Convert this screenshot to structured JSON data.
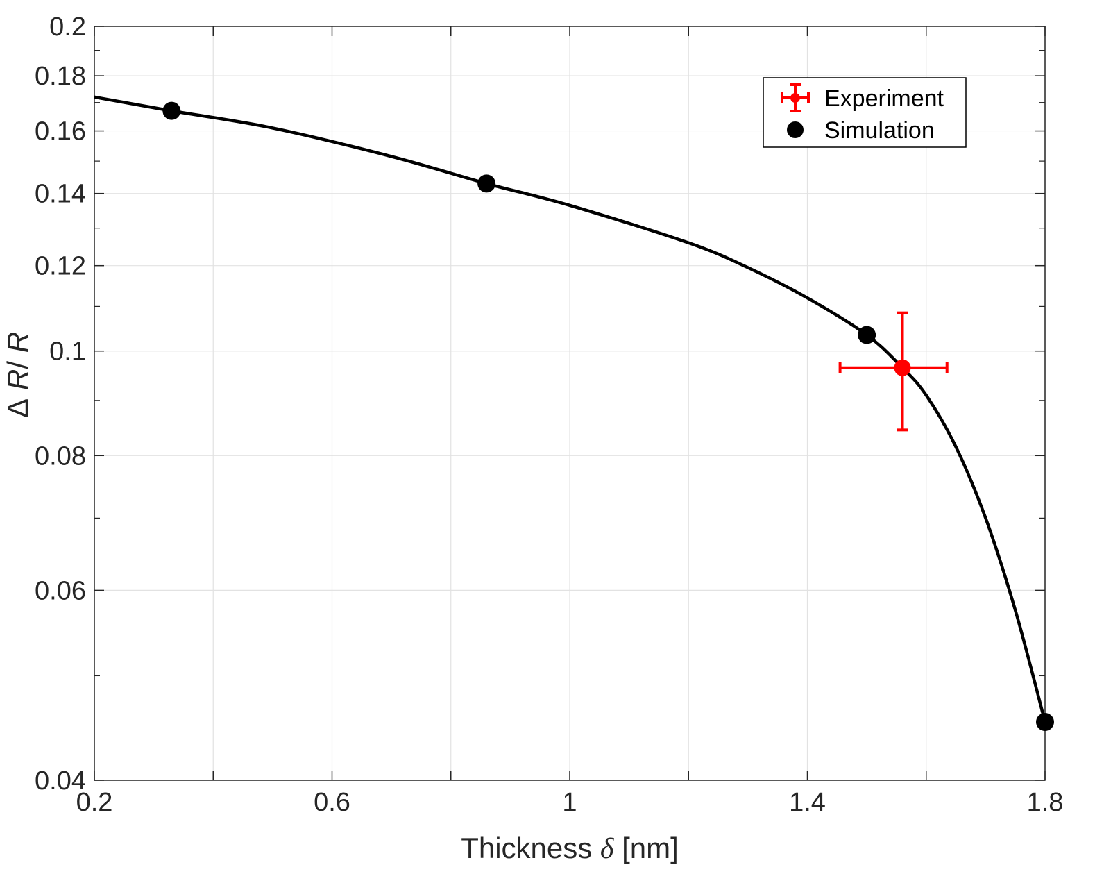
{
  "chart_data": {
    "type": "scatter",
    "xlabel_prefix": "Thickness ",
    "xlabel_symbol": "δ",
    "xlabel_suffix": " [nm]",
    "ylabel_delta": "Δ",
    "ylabel_r1": "R",
    "ylabel_slash": "/ ",
    "ylabel_r2": "R",
    "xlim": [
      0.2,
      1.8
    ],
    "ylim": [
      0.04,
      0.2
    ],
    "yscale": "log",
    "grid": true,
    "xticks": [
      0.2,
      0.6,
      1,
      1.4,
      1.8
    ],
    "xtick_labels": [
      "0.2",
      "0.6",
      "1",
      "1.4",
      "1.8"
    ],
    "xminor": [
      0.4,
      0.8,
      1.2,
      1.6
    ],
    "yticks": [
      0.04,
      0.06,
      0.08,
      0.1,
      0.12,
      0.14,
      0.16,
      0.18,
      0.2
    ],
    "ytick_labels": [
      "0.04",
      "0.06",
      "0.08",
      "0.1",
      "0.12",
      "0.14",
      "0.16",
      "0.18",
      "0.2"
    ],
    "yminor": [
      0.05,
      0.07,
      0.09,
      0.11,
      0.13,
      0.15,
      0.17,
      0.19
    ],
    "fit_curve": {
      "x": [
        0.2,
        0.33,
        0.5,
        0.7,
        0.86,
        1.0,
        1.2,
        1.3,
        1.4,
        1.5,
        1.56,
        1.6,
        1.65,
        1.7,
        1.75,
        1.8
      ],
      "y": [
        0.172,
        0.167,
        0.161,
        0.1515,
        0.143,
        0.1365,
        0.126,
        0.1195,
        0.112,
        0.1035,
        0.0965,
        0.091,
        0.0815,
        0.07,
        0.0575,
        0.0453
      ]
    },
    "series": [
      {
        "name": "Experiment",
        "color": "#ff0000",
        "x": [
          1.56
        ],
        "y": [
          0.0965
        ],
        "xerr": [
          [
            1.455,
            1.635
          ]
        ],
        "yerr": [
          [
            0.0845,
            0.1085
          ]
        ]
      },
      {
        "name": "Simulation",
        "color": "#000000",
        "x": [
          0.33,
          0.86,
          1.5,
          1.8
        ],
        "y": [
          0.167,
          0.143,
          0.1035,
          0.0453
        ]
      }
    ],
    "legend": {
      "placement": "top-right",
      "entries": [
        "Experiment",
        "Simulation"
      ]
    }
  }
}
